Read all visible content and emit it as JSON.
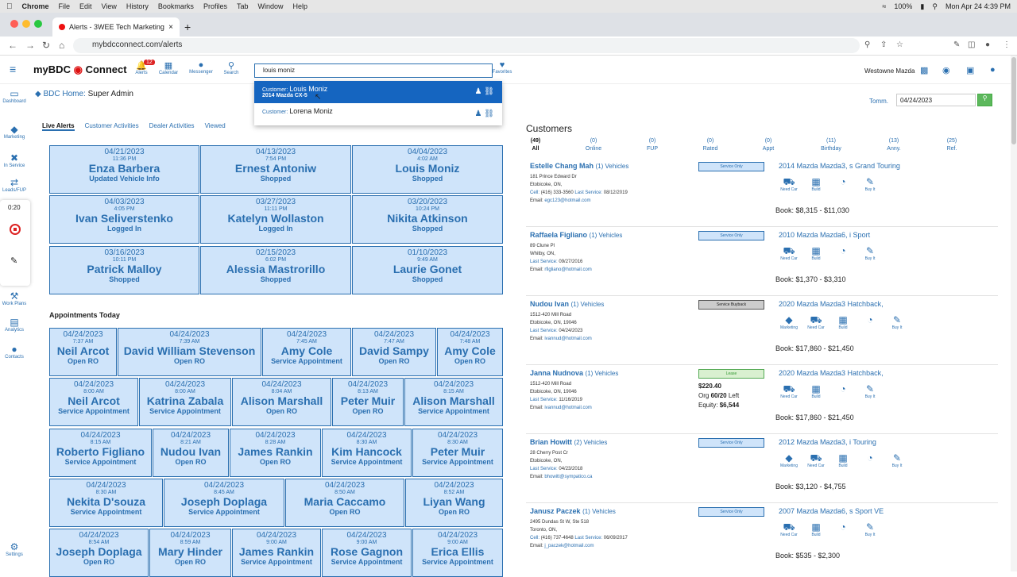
{
  "menubar": {
    "app": "Chrome",
    "items": [
      "File",
      "Edit",
      "View",
      "History",
      "Bookmarks",
      "Profiles",
      "Tab",
      "Window",
      "Help"
    ],
    "battery": "100%",
    "datetime": "Mon Apr 24  4:39 PM"
  },
  "browser": {
    "tab_title": "Alerts - 3WEE Tech Marketing",
    "url": "mybdcconnect.com/alerts"
  },
  "header": {
    "logo_text": "myBDC",
    "logo_connect": "Connect",
    "alerts_count": "12",
    "icons": [
      "Alerts",
      "Calendar",
      "Messenger",
      "Search"
    ],
    "search_value": "louis moniz",
    "favorites": "Favorites",
    "dealer": "Westowne Mazda"
  },
  "dropdown": [
    {
      "prefix": "Customer:",
      "name": "Louis Moniz",
      "sub": "2014 Mazda CX-5"
    },
    {
      "prefix": "Customer:",
      "name": "Lorena Moniz",
      "sub": ""
    }
  ],
  "sidebar": [
    "Dashboard",
    "Marketing",
    "In Service",
    "Leads/FUP",
    "Work Plans",
    "Analytics",
    "Contacts",
    "Settings"
  ],
  "recorder": {
    "time": "0:20"
  },
  "bdc": {
    "label": "BDC Home:",
    "value": "Super Admin"
  },
  "subtabs": [
    "Live Alerts",
    "Customer Activities",
    "Dealer Activities",
    "Viewed"
  ],
  "alerts": [
    {
      "date": "04/21/2023",
      "time": "11:36 PM",
      "name": "Enza Barbera",
      "status": "Updated Vehicle Info"
    },
    {
      "date": "04/13/2023",
      "time": "7:54 PM",
      "name": "Ernest Antoniw",
      "status": "Shopped"
    },
    {
      "date": "04/04/2023",
      "time": "4:02 AM",
      "name": "Louis Moniz",
      "status": "Shopped"
    },
    {
      "date": "04/03/2023",
      "time": "4:05 PM",
      "name": "Ivan Seliverstenko",
      "status": "Logged In"
    },
    {
      "date": "03/27/2023",
      "time": "11:11 PM",
      "name": "Katelyn Wollaston",
      "status": "Logged In"
    },
    {
      "date": "03/20/2023",
      "time": "10:24 PM",
      "name": "Nikita Atkinson",
      "status": "Shopped"
    },
    {
      "date": "03/16/2023",
      "time": "10:11 PM",
      "name": "Patrick Malloy",
      "status": "Shopped"
    },
    {
      "date": "02/15/2023",
      "time": "6:02 PM",
      "name": "Alessia Mastrorillo",
      "status": "Shopped"
    },
    {
      "date": "01/10/2023",
      "time": "9:49 AM",
      "name": "Laurie Gonet",
      "status": "Shopped"
    }
  ],
  "appointments_title": "Appointments Today",
  "appointments": [
    {
      "date": "04/24/2023",
      "time": "7:37 AM",
      "name": "Neil Arcot",
      "status": "Open RO"
    },
    {
      "date": "04/24/2023",
      "time": "7:39 AM",
      "name": "David William Stevenson",
      "status": "Open RO"
    },
    {
      "date": "04/24/2023",
      "time": "7:45 AM",
      "name": "Amy Cole",
      "status": "Service Appointment"
    },
    {
      "date": "04/24/2023",
      "time": "7:47 AM",
      "name": "David Sampy",
      "status": "Open RO"
    },
    {
      "date": "04/24/2023",
      "time": "7:48 AM",
      "name": "Amy Cole",
      "status": "Open RO"
    },
    {
      "date": "04/24/2023",
      "time": "8:00 AM",
      "name": "Neil Arcot",
      "status": "Service Appointment"
    },
    {
      "date": "04/24/2023",
      "time": "8:00 AM",
      "name": "Katrina Zabala",
      "status": "Service Appointment"
    },
    {
      "date": "04/24/2023",
      "time": "8:04 AM",
      "name": "Alison Marshall",
      "status": "Open RO"
    },
    {
      "date": "04/24/2023",
      "time": "8:13 AM",
      "name": "Peter Muir",
      "status": "Open RO"
    },
    {
      "date": "04/24/2023",
      "time": "8:15 AM",
      "name": "Alison Marshall",
      "status": "Service Appointment"
    },
    {
      "date": "04/24/2023",
      "time": "8:15 AM",
      "name": "Roberto Figliano",
      "status": "Service Appointment"
    },
    {
      "date": "04/24/2023",
      "time": "8:21 AM",
      "name": "Nudou Ivan",
      "status": "Open RO"
    },
    {
      "date": "04/24/2023",
      "time": "8:28 AM",
      "name": "James Rankin",
      "status": "Open RO"
    },
    {
      "date": "04/24/2023",
      "time": "8:30 AM",
      "name": "Kim Hancock",
      "status": "Service Appointment"
    },
    {
      "date": "04/24/2023",
      "time": "8:30 AM",
      "name": "Peter Muir",
      "status": "Service Appointment"
    },
    {
      "date": "04/24/2023",
      "time": "8:30 AM",
      "name": "Nekita D'souza",
      "status": "Service Appointment"
    },
    {
      "date": "04/24/2023",
      "time": "8:45 AM",
      "name": "Joseph Doplaga",
      "status": "Service Appointment"
    },
    {
      "date": "04/24/2023",
      "time": "8:50 AM",
      "name": "Maria Caccamo",
      "status": "Open RO"
    },
    {
      "date": "04/24/2023",
      "time": "8:52 AM",
      "name": "Liyan Wang",
      "status": "Open RO"
    },
    {
      "date": "04/24/2023",
      "time": "8:54 AM",
      "name": "Joseph Doplaga",
      "status": "Open RO"
    },
    {
      "date": "04/24/2023",
      "time": "8:59 AM",
      "name": "Mary Hinder",
      "status": "Open RO"
    },
    {
      "date": "04/24/2023",
      "time": "9:00 AM",
      "name": "James Rankin",
      "status": "Service Appointment"
    },
    {
      "date": "04/24/2023",
      "time": "9:00 AM",
      "name": "Rose Gagnon",
      "status": "Service Appointment"
    },
    {
      "date": "04/24/2023",
      "time": "9:00 AM",
      "name": "Erica Ellis",
      "status": "Service Appointment"
    }
  ],
  "date_filter": {
    "label": "Tomm.",
    "value": "04/24/2023"
  },
  "customers_title": "Customers",
  "customer_tabs": [
    {
      "count": "(49)",
      "label": "All"
    },
    {
      "count": "(0)",
      "label": "Online"
    },
    {
      "count": "(0)",
      "label": "FUP"
    },
    {
      "count": "(0)",
      "label": "Rated"
    },
    {
      "count": "(0)",
      "label": "Appt"
    },
    {
      "count": "(11)",
      "label": "Birthday"
    },
    {
      "count": "(13)",
      "label": "Anny."
    },
    {
      "count": "(25)",
      "label": "Ref."
    }
  ],
  "customers": [
    {
      "name": "Estelle Chang Mah",
      "vehicles": "(1) Vehicles",
      "addr": "181 Prince Edward Dr",
      "city": "Etobicoke, ON,",
      "cell": "(416) 333-3560",
      "last_service": "08/12/2019",
      "email": "egc123@hotmail.com",
      "tag": "Service Only",
      "vehicle": "2014 Mazda Mazda3, s Grand Touring",
      "icons": [
        "Need Car",
        "Build",
        "",
        "Buy It"
      ],
      "book": "Book: $8,315 - $11,030"
    },
    {
      "name": "Raffaela Figliano",
      "vehicles": "(1) Vehicles",
      "addr": "89 Clune Pl",
      "city": "Whitby, ON,",
      "cell": "",
      "last_service": "09/27/2016",
      "email": "rfigliano@hotmail.com",
      "tag": "Service Only",
      "vehicle": "2010 Mazda Mazda6, i Sport",
      "icons": [
        "Need Car",
        "Build",
        "",
        "Buy It"
      ],
      "book": "Book: $1,370 - $3,310"
    },
    {
      "name": "Nudou Ivan",
      "vehicles": "(1) Vehicles",
      "addr": "1512-420 Mill Road",
      "city": "Etobicoke, ON, 19046",
      "cell": "",
      "last_service": "04/24/2023",
      "email": "ivannud@hotmail.com",
      "tag": "Service Buyback",
      "vehicle": "2020 Mazda Mazda3 Hatchback,",
      "icons": [
        "Marketing",
        "Need Car",
        "Build",
        "",
        "Buy It"
      ],
      "book": "Book: $17,860 - $21,450"
    },
    {
      "name": "Janna Nudnova",
      "vehicles": "(1) Vehicles",
      "addr": "1512-420 Mill Road",
      "city": "Etobicoke, ON, 19046",
      "cell": "",
      "last_service": "11/16/2019",
      "email": "ivannud@hotmail.com",
      "tag": "Lease",
      "vehicle": "2020 Mazda Mazda3 Hatchback,",
      "icons": [
        "Need Car",
        "Build",
        "",
        "Buy It"
      ],
      "book": "Book: $17,860 - $21,450",
      "lease": {
        "amount": "$220.40",
        "org": "Org",
        "term": "60/20",
        "left": "Left",
        "equity_label": "Equity:",
        "equity": "$6,544"
      }
    },
    {
      "name": "Brian Howitt",
      "vehicles": "(2) Vehicles",
      "addr": "28 Cherry Post Cr",
      "city": "Etobicoke, ON,",
      "cell": "",
      "last_service": "04/23/2018",
      "email": "bhowitt@sympatico.ca",
      "tag": "Service Only",
      "vehicle": "2012 Mazda Mazda3, i Touring",
      "icons": [
        "Marketing",
        "Need Car",
        "Build",
        "",
        "Buy It"
      ],
      "book": "Book: $3,120 - $4,755"
    },
    {
      "name": "Janusz Paczek",
      "vehicles": "(1) Vehicles",
      "addr": "2495 Dundas St W, Ste 518",
      "city": "Toronto, ON,",
      "cell": "(416) 737-4648",
      "last_service": "06/09/2017",
      "email": "j_paczek@hotmail.com",
      "tag": "Service Only",
      "vehicle": "2007 Mazda Mazda6, s Sport VE",
      "icons": [
        "Need Car",
        "Build",
        "",
        "Buy It"
      ],
      "book": "Book: $535 - $2,300"
    }
  ],
  "labels": {
    "cell": "Cell:",
    "last_service": "Last Service:",
    "email": "Email:"
  }
}
